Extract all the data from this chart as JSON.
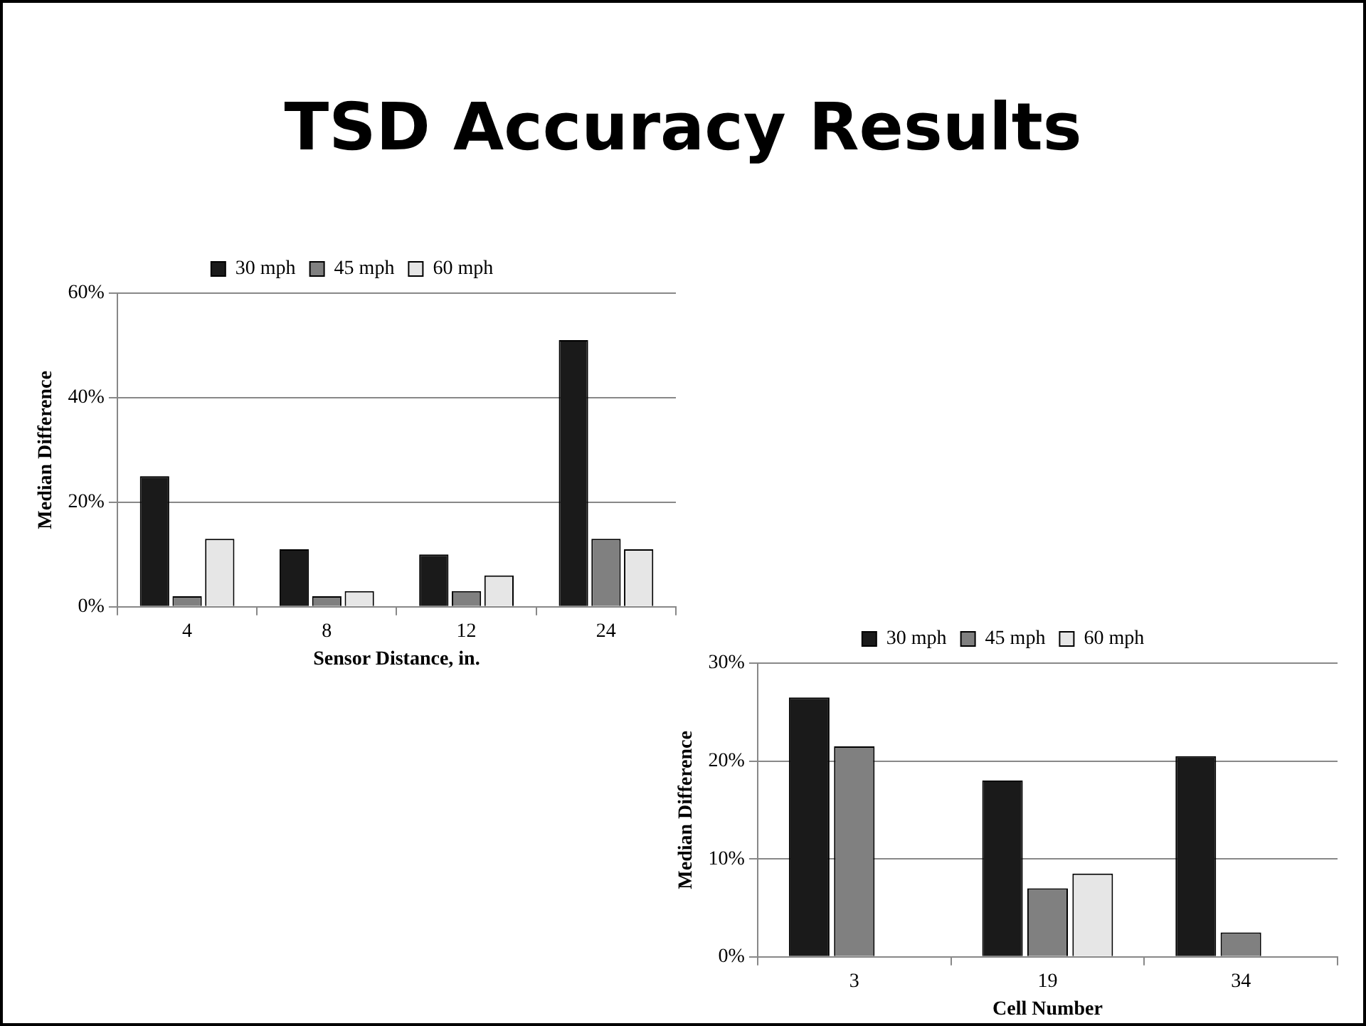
{
  "chart_data": [
    {
      "type": "bar",
      "title": "TSD Accuracy Results",
      "xlabel": "Sensor Distance, in.",
      "ylabel": "Median Difference",
      "categories": [
        "4",
        "8",
        "12",
        "24"
      ],
      "series": [
        {
          "name": "30 mph",
          "color": "#1a1a1a",
          "values": [
            25,
            11,
            10,
            51
          ]
        },
        {
          "name": "45 mph",
          "color": "#808080",
          "values": [
            2,
            2,
            3,
            13
          ]
        },
        {
          "name": "60 mph",
          "color": "#e6e6e6",
          "values": [
            13,
            3,
            6,
            11
          ]
        }
      ],
      "ylim": [
        0,
        60
      ],
      "yticks": [
        {
          "value": 0,
          "label": "0%"
        },
        {
          "value": 20,
          "label": "20%"
        },
        {
          "value": 40,
          "label": "40%"
        },
        {
          "value": 60,
          "label": "60%"
        }
      ],
      "grid": "y",
      "legend": "top"
    },
    {
      "type": "bar",
      "xlabel": "Cell Number",
      "ylabel": "Median Difference",
      "categories": [
        "3",
        "19",
        "34"
      ],
      "series": [
        {
          "name": "30 mph",
          "color": "#1a1a1a",
          "values": [
            26.5,
            18,
            20.5
          ]
        },
        {
          "name": "45 mph",
          "color": "#808080",
          "values": [
            21.5,
            7,
            2.5
          ]
        },
        {
          "name": "60 mph",
          "color": "#e6e6e6",
          "values": [
            null,
            8.5,
            null
          ]
        }
      ],
      "ylim": [
        0,
        30
      ],
      "yticks": [
        {
          "value": 0,
          "label": "0%"
        },
        {
          "value": 10,
          "label": "10%"
        },
        {
          "value": 20,
          "label": "20%"
        },
        {
          "value": 30,
          "label": "30%"
        }
      ],
      "grid": "y",
      "legend": "top"
    }
  ]
}
